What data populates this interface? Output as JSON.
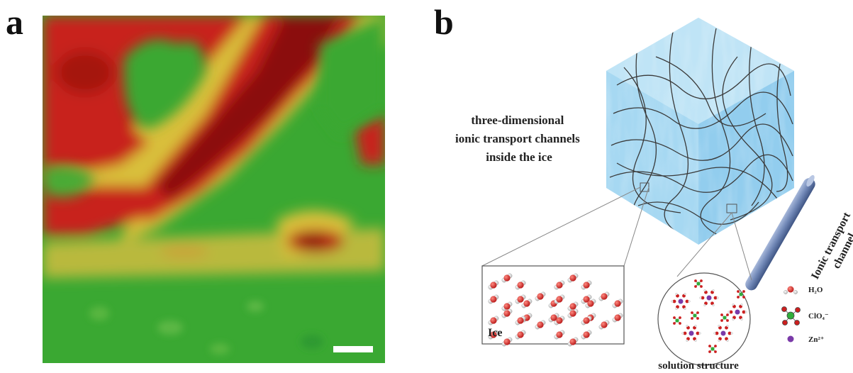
{
  "panel_a": {
    "letter": "a",
    "colors": {
      "high": "#8b0a0a",
      "mid": "#c81e14",
      "edge": "#e8c33a",
      "low": "#3aa832",
      "scale_bar": "#ffffff"
    }
  },
  "panel_b": {
    "letter": "b",
    "cube_label_lines": [
      "three-dimensional",
      "ionic transport channels",
      "inside the ice"
    ],
    "ice_label": "Ice",
    "solution_label": "solution structure",
    "channel_label_lines": [
      "Ionic transport",
      "channel"
    ],
    "legend": [
      {
        "label": "H₂O",
        "icon": "water-molecule-icon"
      },
      {
        "label": "ClO₄⁻",
        "icon": "perchlorate-icon"
      },
      {
        "label": "Zn²⁺",
        "icon": "zinc-ion-icon"
      }
    ],
    "colors": {
      "ice": "#a6d8f2",
      "ice_dark": "#6fb5de",
      "channel_rod": "#6f86b5",
      "oxygen": "#cc1f1f",
      "chlorine": "#2fae3a",
      "zinc": "#7a3aa8"
    }
  }
}
